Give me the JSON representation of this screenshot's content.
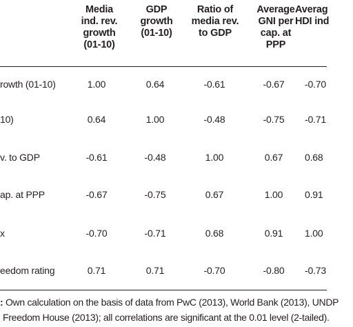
{
  "headers": [
    "Media\nind. rev.\ngrowth\n(01-10)",
    "GDP\ngrowth\n(01-10)",
    "Ratio of\nmedia rev.\nto GDP",
    "Average\nGNI per\ncap. at\nPPP",
    "Averag\nHDI ind"
  ],
  "rows": [
    {
      "label": "rowth (01-10)",
      "values": [
        "1.00",
        "0.64",
        "-0.61",
        "-0.67",
        "-0.70"
      ]
    },
    {
      "label": "10)",
      "values": [
        "0.64",
        "1.00",
        "-0.48",
        "-0.75",
        "-0.71"
      ]
    },
    {
      "label": "v. to GDP",
      "values": [
        "-0.61",
        "-0.48",
        "1.00",
        "0.67",
        "0.68"
      ]
    },
    {
      "label": "ap. at PPP",
      "values": [
        "-0.67",
        "-0.75",
        "0.67",
        "1.00",
        "0.91"
      ]
    },
    {
      "label": "x",
      "values": [
        "-0.70",
        "-0.71",
        "0.68",
        "0.91",
        "1.00"
      ]
    },
    {
      "label": "eedom rating",
      "values": [
        "0.71",
        "0.71",
        "-0.70",
        "-0.80",
        "-0.73"
      ]
    }
  ],
  "notes": {
    "line1_prefix": ":",
    "line1_text": " Own calculation on the basis of data from PwC (2013), World Bank (2013), UNDP",
    "line2_text": "Freedom House (2013); all correlations are significant at the 0.01 level (2-tailed)."
  }
}
